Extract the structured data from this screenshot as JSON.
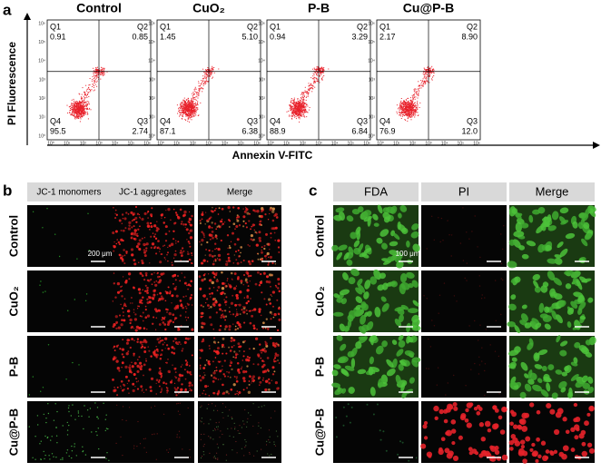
{
  "figure": {
    "panel_a": {
      "label": "a",
      "y_axis_label": "PI Fluorescence",
      "x_axis_label": "Annexin V-FITC",
      "quadrant_names": [
        "Q1",
        "Q2",
        "Q3",
        "Q4"
      ],
      "y_ticks": [
        "10⁰",
        "10¹",
        "10²",
        "10³",
        "10⁴",
        "10⁵",
        "10⁶"
      ],
      "x_ticks": [
        "10⁰",
        "10¹",
        "10²",
        "10³",
        "10⁴",
        "10⁵",
        "10⁶"
      ],
      "plots": [
        {
          "title": "Control",
          "quadrants": [
            "0.91",
            "0.85",
            "2.74",
            "95.5"
          ]
        },
        {
          "title": "CuO₂",
          "quadrants": [
            "1.45",
            "5.10",
            "6.38",
            "87.1"
          ]
        },
        {
          "title": "P-B",
          "quadrants": [
            "0.94",
            "3.29",
            "6.84",
            "88.9"
          ]
        },
        {
          "title": "Cu@P-B",
          "quadrants": [
            "2.17",
            "8.90",
            "12.0",
            "76.9"
          ]
        }
      ]
    },
    "panel_b": {
      "label": "b",
      "columns": [
        "JC-1 monomers",
        "JC-1 aggregates",
        "Merge"
      ],
      "rows": [
        "Control",
        "CuO₂",
        "P-B",
        "Cu@P-B"
      ],
      "scale_bar": "200 μm"
    },
    "panel_c": {
      "label": "c",
      "columns": [
        "FDA",
        "PI",
        "Merge"
      ],
      "rows": [
        "Control",
        "CuO₂",
        "P-B",
        "Cu@P-B"
      ],
      "scale_bar": "100 μm"
    }
  }
}
